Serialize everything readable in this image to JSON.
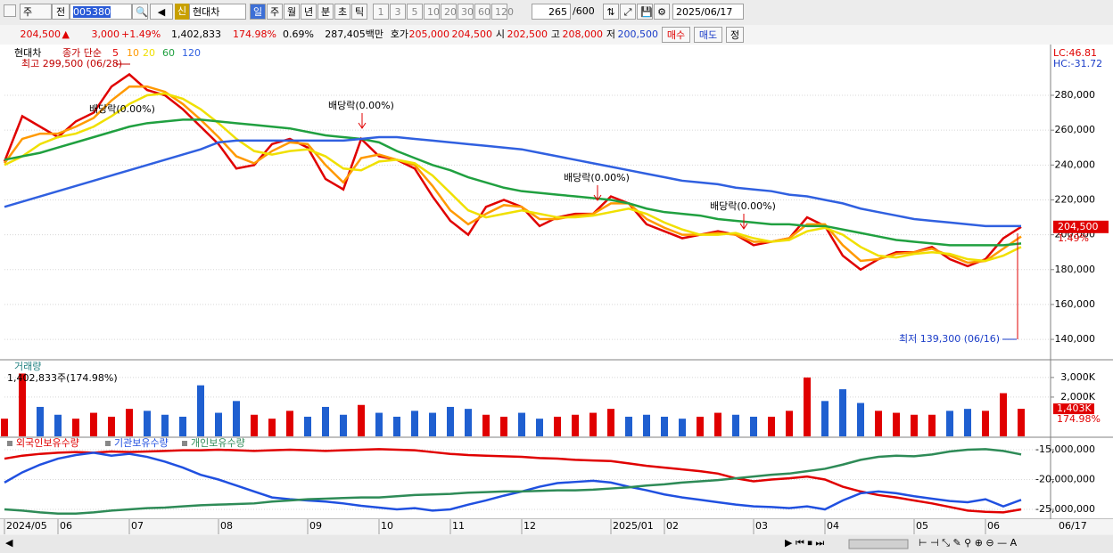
{
  "toolbar": {
    "market": "주",
    "mode": "전",
    "code": "005380",
    "name": "현대차",
    "periods": [
      "일",
      "주",
      "월",
      "년",
      "분",
      "초",
      "틱"
    ],
    "intervals": [
      "1",
      "3",
      "5",
      "10",
      "20",
      "30",
      "60",
      "120"
    ],
    "count": "265",
    "max": "/600",
    "date": "2025/06/17"
  },
  "quote": {
    "price": "204,500",
    "sign": "▲",
    "change": "3,000",
    "change_pct": "+1.49%",
    "volume": "1,402,833",
    "volume_pct": "174.98%",
    "turnover": "0.69%",
    "amount": "287,405백만",
    "ask_label": "호가",
    "ask": "205,000",
    "bid": "204,500",
    "open_label": "시",
    "open": "202,500",
    "high_label": "고",
    "high": "208,000",
    "low_label": "저",
    "low": "200,500",
    "buy": "매수",
    "sell": "매도",
    "fix": "정"
  },
  "chart_data": [
    {
      "type": "line",
      "title": "현대차",
      "legend_title": "종가 단순",
      "categories": [
        "2024/05",
        null,
        null,
        "06",
        null,
        null,
        null,
        "07",
        null,
        null,
        null,
        null,
        "08",
        null,
        null,
        null,
        null,
        "09",
        null,
        null,
        null,
        "10",
        null,
        null,
        null,
        "11",
        null,
        null,
        null,
        "12",
        null,
        null,
        null,
        null,
        "2025/01",
        null,
        null,
        "02",
        null,
        null,
        null,
        null,
        "03",
        null,
        null,
        null,
        "04",
        null,
        null,
        null,
        null,
        "05",
        null,
        null,
        null,
        "06",
        null,
        null
      ],
      "end_label": "06/17",
      "series": [
        {
          "name": "5",
          "color": "#e00000",
          "values": [
            242000,
            268000,
            262000,
            256000,
            265000,
            270000,
            285000,
            292000,
            283000,
            280000,
            272000,
            262000,
            252000,
            238000,
            240000,
            252000,
            255000,
            250000,
            232000,
            226000,
            255000,
            245000,
            243000,
            238000,
            222000,
            208000,
            200000,
            216000,
            220000,
            216000,
            205000,
            210000,
            212000,
            212000,
            222000,
            218000,
            206000,
            202000,
            198000,
            200000,
            202000,
            200000,
            194000,
            196000,
            198000,
            210000,
            205000,
            188000,
            180000,
            186000,
            190000,
            190000,
            193000,
            186000,
            182000,
            186000,
            198000,
            204500
          ]
        },
        {
          "name": "10",
          "color": "#ff9900",
          "values": [
            241000,
            255000,
            258000,
            258000,
            262000,
            267000,
            277000,
            285000,
            285000,
            282000,
            275000,
            266000,
            256000,
            245000,
            241000,
            248000,
            253000,
            252000,
            240000,
            230000,
            244000,
            246000,
            243000,
            240000,
            228000,
            214000,
            206000,
            212000,
            217000,
            216000,
            209000,
            209000,
            211000,
            212000,
            218000,
            218000,
            209000,
            204000,
            200000,
            200000,
            201000,
            200000,
            196000,
            196000,
            198000,
            206000,
            206000,
            194000,
            185000,
            186000,
            189000,
            190000,
            192000,
            188000,
            184000,
            185000,
            192000,
            199000
          ]
        },
        {
          "name": "20",
          "color": "#f0e000",
          "values": [
            240000,
            245000,
            252000,
            256000,
            258000,
            262000,
            268000,
            275000,
            280000,
            281000,
            278000,
            272000,
            264000,
            255000,
            248000,
            246000,
            248000,
            249000,
            245000,
            238000,
            237000,
            242000,
            243000,
            241000,
            234000,
            224000,
            214000,
            210000,
            212000,
            214000,
            212000,
            210000,
            210000,
            211000,
            213000,
            215000,
            212000,
            207000,
            203000,
            200000,
            200000,
            201000,
            198000,
            196000,
            197000,
            202000,
            204000,
            200000,
            193000,
            188000,
            187000,
            189000,
            190000,
            189000,
            186000,
            185000,
            188000,
            193000
          ]
        },
        {
          "name": "60",
          "color": "#20a040",
          "values": [
            243000,
            245000,
            247000,
            250000,
            253000,
            256000,
            259000,
            262000,
            264000,
            265000,
            266000,
            266000,
            265000,
            264000,
            263000,
            262000,
            261000,
            259000,
            257000,
            256000,
            255000,
            253000,
            248000,
            244000,
            240000,
            237000,
            233000,
            230000,
            227000,
            225000,
            224000,
            223000,
            222000,
            221000,
            220000,
            218000,
            215000,
            213000,
            212000,
            211000,
            209000,
            208000,
            207000,
            206000,
            206000,
            205000,
            205000,
            203000,
            201000,
            199000,
            197000,
            196000,
            195000,
            194000,
            194000,
            194000,
            194000,
            195000
          ]
        },
        {
          "name": "120",
          "color": "#3060e0",
          "values": [
            216000,
            219000,
            222000,
            225000,
            228000,
            231000,
            234000,
            237000,
            240000,
            243000,
            246000,
            249000,
            253000,
            254000,
            254000,
            254000,
            254000,
            254000,
            254000,
            254000,
            255000,
            256000,
            256000,
            255000,
            254000,
            253000,
            252000,
            251000,
            250000,
            249000,
            247000,
            245000,
            243000,
            241000,
            239000,
            237000,
            235000,
            233000,
            231000,
            230000,
            229000,
            227000,
            226000,
            225000,
            223000,
            222000,
            220000,
            218000,
            215000,
            213000,
            211000,
            209000,
            208000,
            207000,
            206000,
            205000,
            205000,
            205000
          ]
        }
      ],
      "ylim": [
        128800,
        308100
      ],
      "yticks": [
        {
          "value": 140000,
          "label": "140,000"
        },
        {
          "value": 160000,
          "label": "160,000"
        },
        {
          "value": 180000,
          "label": "180,000"
        },
        {
          "value": 200000,
          "label": "200,000"
        },
        {
          "value": 220000,
          "label": "220,000"
        },
        {
          "value": 240000,
          "label": "240,000"
        },
        {
          "value": 260000,
          "label": "260,000"
        },
        {
          "value": 280000,
          "label": "280,000"
        }
      ],
      "max_label": "최고 299,500 (06/28)",
      "min_label": "최저 139,300 (06/16)",
      "annotations": [
        "배당락(0.00%)",
        "배당락(0.00%)",
        "배당락(0.00%)",
        "배당락(0.00%)"
      ],
      "last_label": "204,500",
      "last_change": "1.49%",
      "lc": "LC:46.81",
      "hc": "HC:-31.72"
    },
    {
      "type": "bar",
      "title": "거래량",
      "subtitle": "1,402,833주(174.98%)",
      "values": [
        900000,
        3200000,
        1500000,
        1100000,
        900000,
        1200000,
        1000000,
        1400000,
        1300000,
        1100000,
        1000000,
        2600000,
        1200000,
        1800000,
        1100000,
        900000,
        1300000,
        1000000,
        1500000,
        1100000,
        1600000,
        1200000,
        1000000,
        1300000,
        1200000,
        1500000,
        1400000,
        1100000,
        1000000,
        1200000,
        900000,
        1000000,
        1100000,
        1200000,
        1400000,
        1000000,
        1100000,
        1000000,
        900000,
        1000000,
        1200000,
        1100000,
        1000000,
        1000000,
        1300000,
        3000000,
        1800000,
        2400000,
        1700000,
        1300000,
        1200000,
        1100000,
        1100000,
        1300000,
        1400000,
        1300000,
        2200000,
        1402833
      ],
      "up_color": "#e00000",
      "down_color": "#1f5fd0",
      "ylim": [
        0,
        3857000
      ],
      "yticks": [
        {
          "value": 2000000,
          "label": "2,000K"
        },
        {
          "value": 3000000,
          "label": "3,000K"
        }
      ],
      "last_label": "1,403K",
      "last_ratio": "174.98%"
    },
    {
      "type": "line",
      "series": [
        {
          "name": "외국인보유수량",
          "color": "#e00000",
          "values": [
            -16500000,
            -16000000,
            -15700000,
            -15500000,
            -15400000,
            -15500000,
            -15300000,
            -15400000,
            -15300000,
            -15200000,
            -15100000,
            -15100000,
            -15000000,
            -15100000,
            -15200000,
            -15100000,
            -15000000,
            -15100000,
            -15200000,
            -15100000,
            -15000000,
            -14900000,
            -15000000,
            -15100000,
            -15400000,
            -15700000,
            -15900000,
            -16000000,
            -16100000,
            -16200000,
            -16400000,
            -16500000,
            -16700000,
            -16800000,
            -16900000,
            -17300000,
            -17700000,
            -18000000,
            -18300000,
            -18600000,
            -19000000,
            -19800000,
            -20300000,
            -20000000,
            -19800000,
            -19500000,
            -20000000,
            -21200000,
            -22000000,
            -22600000,
            -23000000,
            -23500000,
            -24000000,
            -24600000,
            -25200000,
            -25400000,
            -25500000,
            -25000000
          ]
        },
        {
          "name": "기관보유수량",
          "color": "#2050e0",
          "values": [
            -20500000,
            -18800000,
            -17500000,
            -16500000,
            -15900000,
            -15500000,
            -16000000,
            -15700000,
            -16200000,
            -17000000,
            -18000000,
            -19200000,
            -20000000,
            -21000000,
            -22000000,
            -23000000,
            -23300000,
            -23500000,
            -23700000,
            -24000000,
            -24400000,
            -24700000,
            -25000000,
            -24800000,
            -25200000,
            -25000000,
            -24200000,
            -23500000,
            -22700000,
            -22000000,
            -21200000,
            -20600000,
            -20400000,
            -20200000,
            -20500000,
            -21200000,
            -21800000,
            -22500000,
            -23000000,
            -23400000,
            -23800000,
            -24200000,
            -24500000,
            -24600000,
            -24800000,
            -24500000,
            -25000000,
            -23500000,
            -22300000,
            -22000000,
            -22300000,
            -22800000,
            -23200000,
            -23600000,
            -23800000,
            -23300000,
            -24500000,
            -23400000
          ]
        },
        {
          "name": "개인보유수량",
          "color": "#2e8b57",
          "values": [
            -25000000,
            -25200000,
            -25500000,
            -25700000,
            -25700000,
            -25500000,
            -25200000,
            -25000000,
            -24800000,
            -24700000,
            -24500000,
            -24300000,
            -24200000,
            -24100000,
            -24000000,
            -23700000,
            -23500000,
            -23300000,
            -23200000,
            -23100000,
            -23000000,
            -23000000,
            -22800000,
            -22600000,
            -22500000,
            -22400000,
            -22200000,
            -22100000,
            -22000000,
            -22000000,
            -21900000,
            -21800000,
            -21800000,
            -21700000,
            -21500000,
            -21300000,
            -21000000,
            -20800000,
            -20500000,
            -20300000,
            -20100000,
            -19800000,
            -19500000,
            -19200000,
            -19000000,
            -18600000,
            -18200000,
            -17500000,
            -16700000,
            -16200000,
            -16000000,
            -16100000,
            -15800000,
            -15300000,
            -15000000,
            -14900000,
            -15200000,
            -15800000
          ]
        }
      ],
      "ylim": [
        -26490000,
        -13060000
      ],
      "yticks": [
        {
          "value": -25000000,
          "label": "-25,000,000"
        },
        {
          "value": -20000000,
          "label": "-20,000,000"
        },
        {
          "value": -15000000,
          "label": "-15,000,000"
        }
      ]
    }
  ]
}
